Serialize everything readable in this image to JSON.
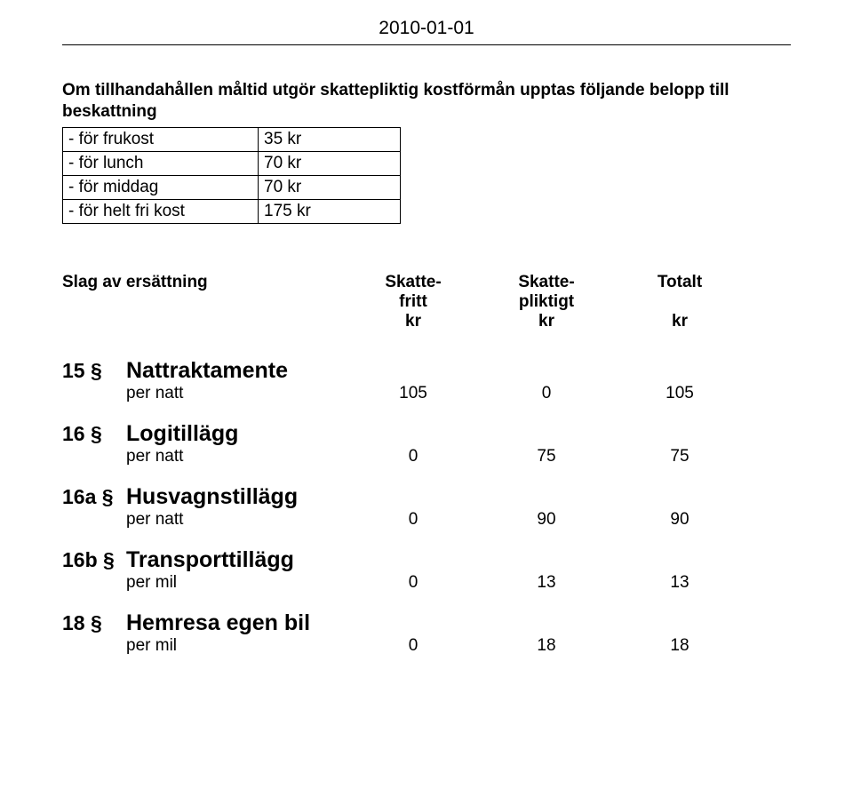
{
  "date": "2010-01-01",
  "intro": {
    "line1": "Om tillhandahållen måltid utgör skattepliktig kostförmån upptas följande belopp till",
    "line2": "beskattning"
  },
  "meals": {
    "rows": [
      {
        "label": "- för frukost",
        "amount": "35 kr"
      },
      {
        "label": "- för lunch",
        "amount": "70 kr"
      },
      {
        "label": "- för middag",
        "amount": "70 kr"
      },
      {
        "label": "- för helt fri kost",
        "amount": "175 kr"
      }
    ]
  },
  "headers": {
    "slag": "Slag av ersättning",
    "col1_a": "Skatte-",
    "col1_b": "fritt",
    "col1_c": "kr",
    "col2_a": "Skatte-",
    "col2_b": "pliktigt",
    "col2_c": "kr",
    "col3_a": "Totalt",
    "col3_c": "kr"
  },
  "sections": [
    {
      "num": "15 §",
      "title": "Nattraktamente",
      "per": "per natt",
      "v1": "105",
      "v2": "0",
      "v3": "105"
    },
    {
      "num": "16 §",
      "title": "Logitillägg",
      "per": "per natt",
      "v1": "0",
      "v2": "75",
      "v3": "75"
    },
    {
      "num": "16a §",
      "title": "Husvagnstillägg",
      "per": "per natt",
      "v1": "0",
      "v2": "90",
      "v3": "90"
    },
    {
      "num": "16b §",
      "title": "Transporttillägg",
      "per": "per mil",
      "v1": "0",
      "v2": "13",
      "v3": "13"
    },
    {
      "num": "18 §",
      "title": "Hemresa egen bil",
      "per": "per mil",
      "v1": "0",
      "v2": "18",
      "v3": "18"
    }
  ]
}
